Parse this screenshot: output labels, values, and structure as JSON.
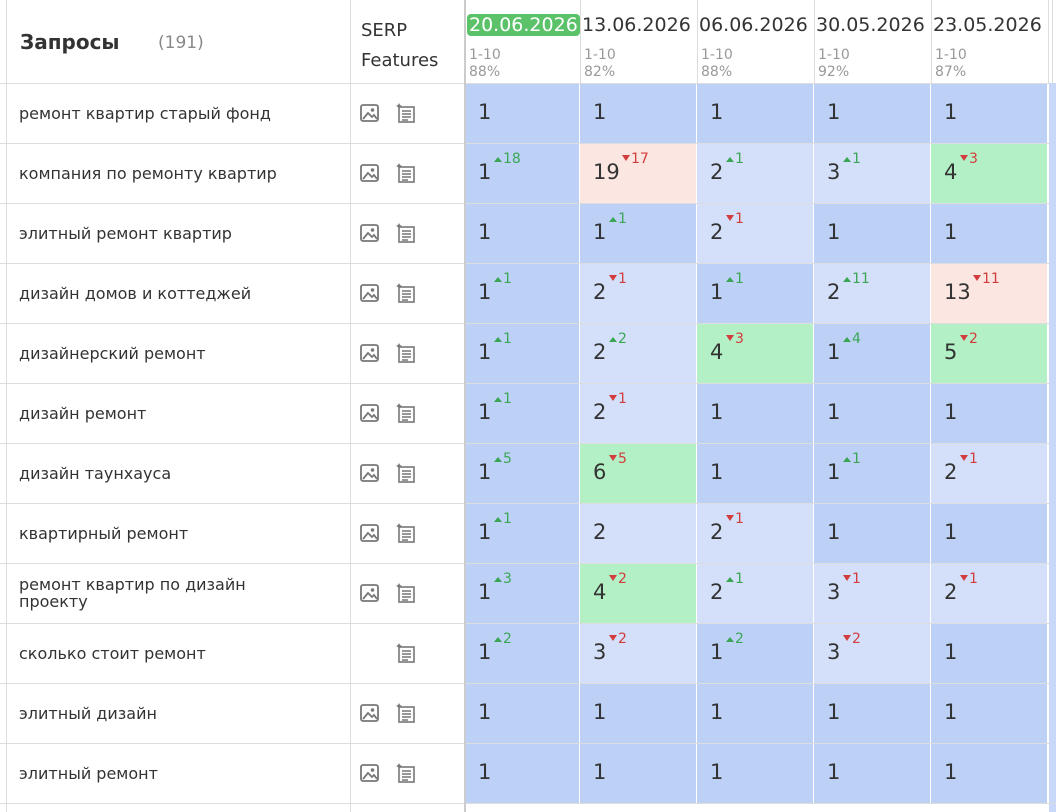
{
  "header": {
    "title": "Запросы",
    "count": "(191)",
    "serp": "SERP Features"
  },
  "columns": [
    {
      "date": "20.06.2026",
      "range": "1-10",
      "share": "88%",
      "current": true
    },
    {
      "date": "13.06.2026",
      "range": "1-10",
      "share": "82%",
      "current": false
    },
    {
      "date": "06.06.2026",
      "range": "1-10",
      "share": "88%",
      "current": false
    },
    {
      "date": "30.05.2026",
      "range": "1-10",
      "share": "92%",
      "current": false
    },
    {
      "date": "23.05.2026",
      "range": "1-10",
      "share": "87%",
      "current": false
    }
  ],
  "rows": [
    {
      "query": "ремонт квартир старый фонд",
      "features": [
        "images",
        "snippet"
      ],
      "positions": [
        {
          "value": 1
        },
        {
          "value": 1
        },
        {
          "value": 1
        },
        {
          "value": 1
        },
        {
          "value": 1
        }
      ]
    },
    {
      "query": "компания по ремонту квартир",
      "features": [
        "images",
        "snippet"
      ],
      "positions": [
        {
          "value": 1,
          "trend": "up",
          "change": 18
        },
        {
          "value": 19,
          "trend": "down",
          "change": 17
        },
        {
          "value": 2,
          "trend": "up",
          "change": 1
        },
        {
          "value": 3,
          "trend": "up",
          "change": 1
        },
        {
          "value": 4,
          "trend": "down",
          "change": 3
        }
      ]
    },
    {
      "query": "элитный ремонт квартир",
      "features": [
        "images",
        "snippet"
      ],
      "positions": [
        {
          "value": 1
        },
        {
          "value": 1,
          "trend": "up",
          "change": 1
        },
        {
          "value": 2,
          "trend": "down",
          "change": 1
        },
        {
          "value": 1
        },
        {
          "value": 1
        }
      ]
    },
    {
      "query": "дизайн домов и коттеджей",
      "features": [
        "images",
        "snippet"
      ],
      "positions": [
        {
          "value": 1,
          "trend": "up",
          "change": 1
        },
        {
          "value": 2,
          "trend": "down",
          "change": 1
        },
        {
          "value": 1,
          "trend": "up",
          "change": 1
        },
        {
          "value": 2,
          "trend": "up",
          "change": 11
        },
        {
          "value": 13,
          "trend": "down",
          "change": 11
        }
      ]
    },
    {
      "query": "дизайнерский ремонт",
      "features": [
        "images",
        "snippet"
      ],
      "positions": [
        {
          "value": 1,
          "trend": "up",
          "change": 1
        },
        {
          "value": 2,
          "trend": "up",
          "change": 2
        },
        {
          "value": 4,
          "trend": "down",
          "change": 3
        },
        {
          "value": 1,
          "trend": "up",
          "change": 4
        },
        {
          "value": 5,
          "trend": "down",
          "change": 2
        }
      ]
    },
    {
      "query": "дизайн ремонт",
      "features": [
        "images",
        "snippet"
      ],
      "positions": [
        {
          "value": 1,
          "trend": "up",
          "change": 1
        },
        {
          "value": 2,
          "trend": "down",
          "change": 1
        },
        {
          "value": 1
        },
        {
          "value": 1
        },
        {
          "value": 1
        }
      ]
    },
    {
      "query": "дизайн таунхауса",
      "features": [
        "images",
        "snippet"
      ],
      "positions": [
        {
          "value": 1,
          "trend": "up",
          "change": 5
        },
        {
          "value": 6,
          "trend": "down",
          "change": 5
        },
        {
          "value": 1
        },
        {
          "value": 1,
          "trend": "up",
          "change": 1
        },
        {
          "value": 2,
          "trend": "down",
          "change": 1
        }
      ]
    },
    {
      "query": "квартирный ремонт",
      "features": [
        "images",
        "snippet"
      ],
      "positions": [
        {
          "value": 1,
          "trend": "up",
          "change": 1
        },
        {
          "value": 2
        },
        {
          "value": 2,
          "trend": "down",
          "change": 1
        },
        {
          "value": 1
        },
        {
          "value": 1
        }
      ]
    },
    {
      "query": "ремонт квартир по дизайн проекту",
      "features": [
        "images",
        "snippet"
      ],
      "positions": [
        {
          "value": 1,
          "trend": "up",
          "change": 3
        },
        {
          "value": 4,
          "trend": "down",
          "change": 2
        },
        {
          "value": 2,
          "trend": "up",
          "change": 1
        },
        {
          "value": 3,
          "trend": "down",
          "change": 1
        },
        {
          "value": 2,
          "trend": "down",
          "change": 1
        }
      ]
    },
    {
      "query": "сколько стоит ремонт",
      "features": [
        "snippet"
      ],
      "positions": [
        {
          "value": 1,
          "trend": "up",
          "change": 2
        },
        {
          "value": 3,
          "trend": "down",
          "change": 2
        },
        {
          "value": 1,
          "trend": "up",
          "change": 2
        },
        {
          "value": 3,
          "trend": "down",
          "change": 2
        },
        {
          "value": 1
        }
      ]
    },
    {
      "query": "элитный дизайн",
      "features": [
        "images",
        "snippet"
      ],
      "positions": [
        {
          "value": 1
        },
        {
          "value": 1
        },
        {
          "value": 1
        },
        {
          "value": 1
        },
        {
          "value": 1
        }
      ]
    },
    {
      "query": "элитный ремонт",
      "features": [
        "images",
        "snippet"
      ],
      "positions": [
        {
          "value": 1
        },
        {
          "value": 1
        },
        {
          "value": 1
        },
        {
          "value": 1
        },
        {
          "value": 1
        }
      ]
    }
  ]
}
